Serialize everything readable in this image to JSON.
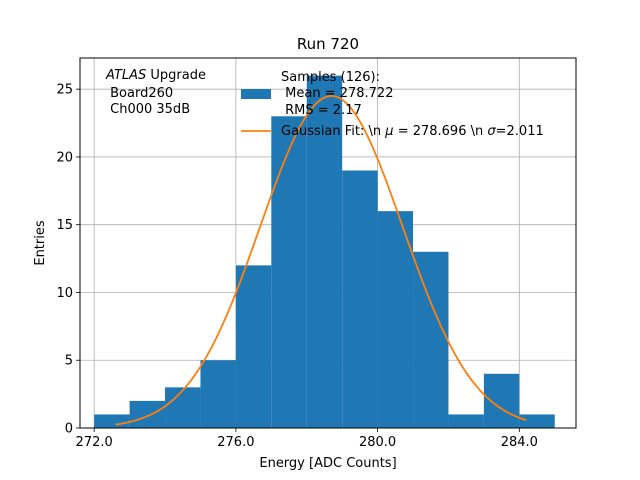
{
  "chart_data": {
    "type": "bar",
    "title": "Run 720",
    "xlabel": "Energy [ADC Counts]",
    "ylabel": "Entries",
    "xlim": [
      271.6,
      285.6
    ],
    "ylim": [
      0,
      27.3
    ],
    "xticks": [
      272,
      276,
      280,
      284
    ],
    "xtick_labels": [
      "272.0",
      "276.0",
      "280.0",
      "284.0"
    ],
    "yticks": [
      0,
      5,
      10,
      15,
      20,
      25
    ],
    "ytick_labels": [
      "0",
      "5",
      "10",
      "15",
      "20",
      "25"
    ],
    "grid": true,
    "bin_edges": [
      272,
      273,
      274,
      275,
      276,
      277,
      278,
      279,
      280,
      281,
      282,
      283,
      284,
      285
    ],
    "values": [
      1,
      2,
      3,
      5,
      12,
      23,
      26,
      19,
      16,
      13,
      1,
      4,
      1
    ],
    "bar_color": "#1f77b4",
    "fit_color": "#ff7f0e",
    "fit": {
      "mu": 278.696,
      "sigma": 2.011,
      "amplitude": 24.5,
      "x_range": [
        272.6,
        284.2
      ]
    },
    "legend": {
      "placement": "top-right",
      "hist_label_lines": [
        "Samples (126):",
        " Mean = 278.722",
        " RMS = 2.17"
      ],
      "fit_label": "Gaussian Fit: \\n $\\mu$ = 278.696 \\n $\\sigma$=2.011"
    },
    "annotation": {
      "italic_part": "ATLAS",
      "rest_part": " Upgrade",
      "lines": [
        " Board260",
        " Ch000 35dB"
      ]
    }
  }
}
